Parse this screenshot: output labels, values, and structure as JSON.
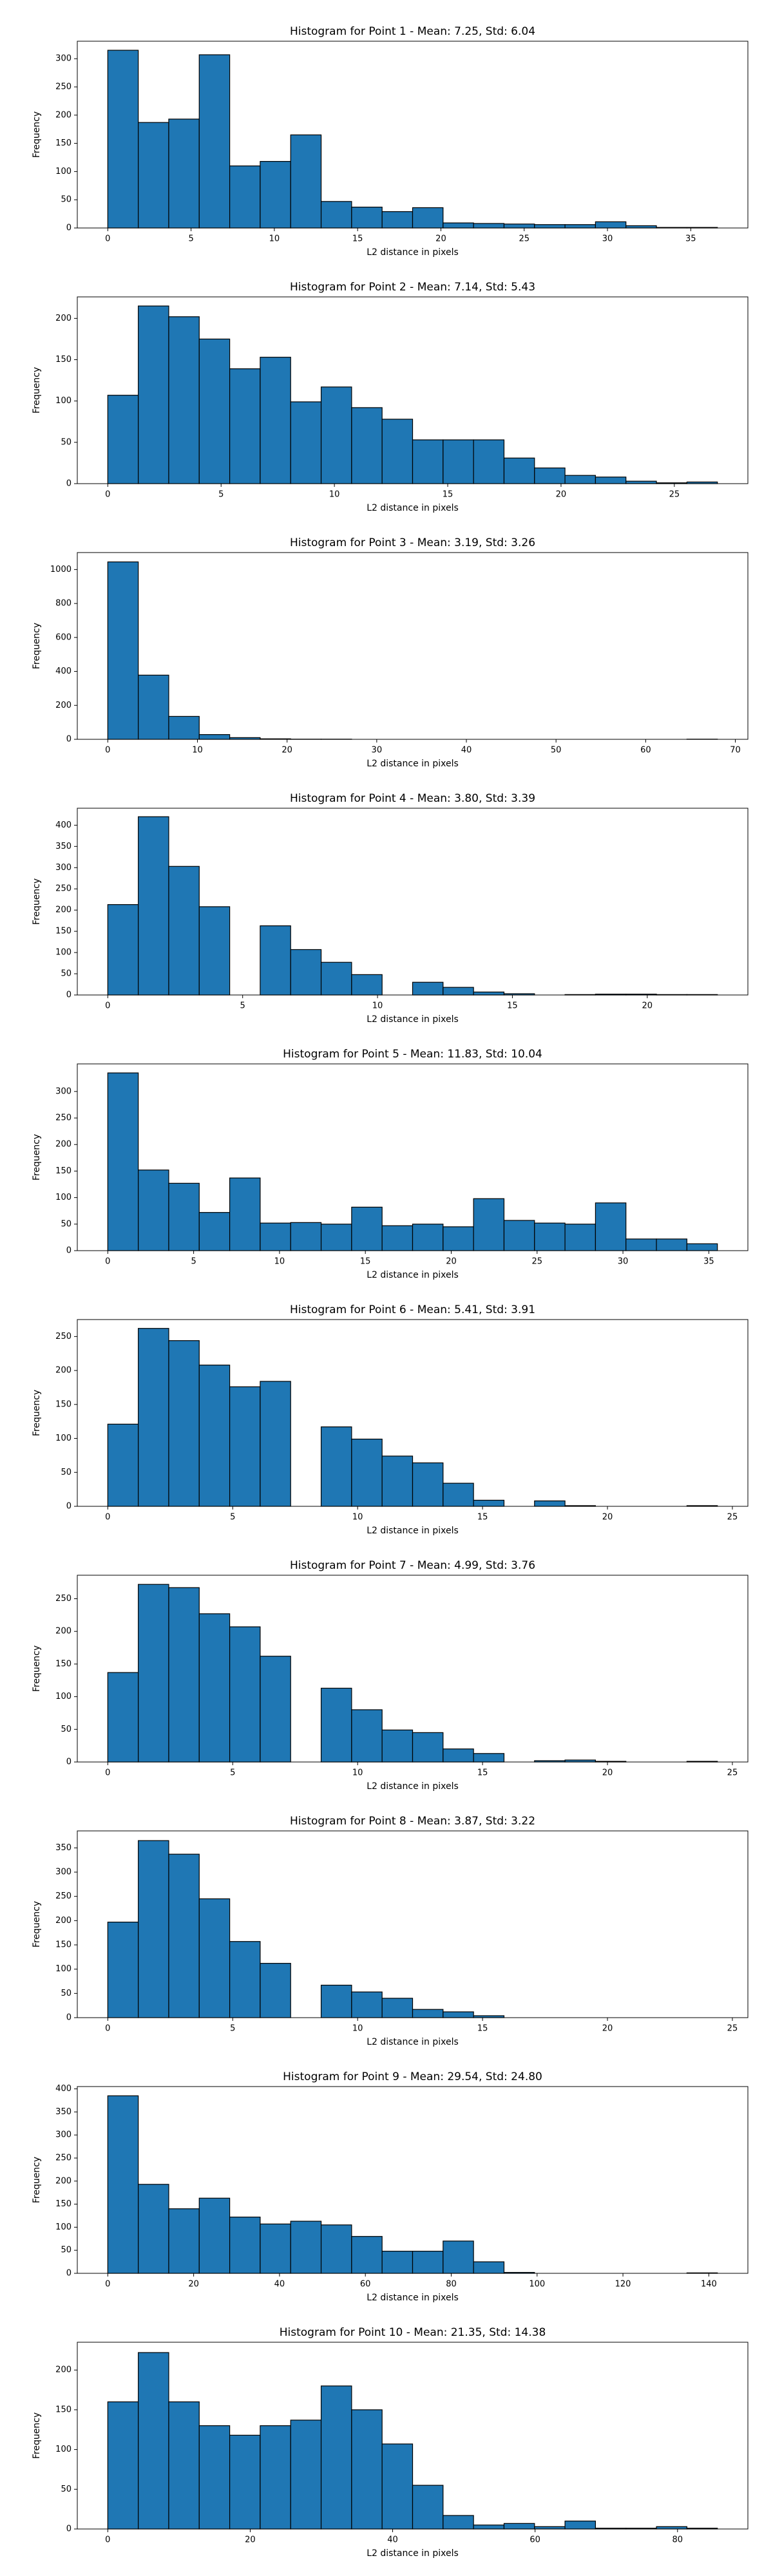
{
  "chart_data": [
    {
      "type": "histogram",
      "title": "Histogram for Point 1 - Mean: 7.25, Std: 6.04",
      "x_label": "L2 distance in pixels",
      "y_label": "Frequency",
      "color": "#1f77b4",
      "bins": [
        0,
        1.83,
        3.66,
        5.49,
        7.32,
        9.15,
        10.98,
        12.81,
        14.64,
        16.47,
        18.3,
        20.13,
        21.96,
        23.79,
        25.62,
        27.45,
        29.28,
        31.11,
        32.94,
        34.77,
        36.6
      ],
      "values": [
        315,
        187,
        193,
        307,
        110,
        118,
        165,
        47,
        37,
        29,
        36,
        9,
        8,
        7,
        6,
        6,
        11,
        4,
        1,
        1
      ],
      "xlim": [
        -1.83,
        38.43
      ],
      "xticks": [
        0,
        5,
        10,
        15,
        20,
        25,
        30,
        35
      ],
      "ylim": [
        0,
        331
      ],
      "yticks": [
        0,
        50,
        100,
        150,
        200,
        250,
        300
      ]
    },
    {
      "type": "histogram",
      "title": "Histogram for Point 2 - Mean: 7.14, Std: 5.43",
      "x_label": "L2 distance in pixels",
      "y_label": "Frequency",
      "color": "#1f77b4",
      "bins": [
        0,
        1.345,
        2.69,
        4.035,
        5.38,
        6.725,
        8.07,
        9.415,
        10.76,
        12.105,
        13.45,
        14.795,
        16.14,
        17.485,
        18.83,
        20.175,
        21.52,
        22.865,
        24.21,
        25.555,
        26.9
      ],
      "values": [
        107,
        215,
        202,
        175,
        139,
        153,
        99,
        117,
        92,
        78,
        53,
        53,
        53,
        31,
        19,
        10,
        8,
        3,
        1,
        2
      ],
      "xlim": [
        -1.345,
        28.245
      ],
      "xticks": [
        0,
        5,
        10,
        15,
        20,
        25
      ],
      "ylim": [
        0,
        226
      ],
      "yticks": [
        0,
        50,
        100,
        150,
        200
      ]
    },
    {
      "type": "histogram",
      "title": "Histogram for Point 3 - Mean: 3.19, Std: 3.26",
      "x_label": "L2 distance in pixels",
      "y_label": "Frequency",
      "color": "#1f77b4",
      "bins": [
        0,
        3.4,
        6.8,
        10.2,
        13.6,
        17,
        20.4,
        23.8,
        27.2,
        30.6,
        34,
        37.4,
        40.8,
        44.2,
        47.6,
        51,
        54.4,
        57.8,
        61.2,
        64.6,
        68
      ],
      "values": [
        1045,
        378,
        135,
        28,
        10,
        3,
        1,
        1,
        0,
        0,
        0,
        0,
        0,
        0,
        0,
        0,
        0,
        0,
        0,
        1
      ],
      "xlim": [
        -3.4,
        71.4
      ],
      "xticks": [
        0,
        10,
        20,
        30,
        40,
        50,
        60,
        70
      ],
      "ylim": [
        0,
        1100
      ],
      "yticks": [
        0,
        200,
        400,
        600,
        800,
        1000
      ]
    },
    {
      "type": "histogram",
      "title": "Histogram for Point 4 - Mean: 3.80, Std: 3.39",
      "x_label": "L2 distance in pixels",
      "y_label": "Frequency",
      "color": "#1f77b4",
      "bins": [
        0,
        1.13,
        2.26,
        3.39,
        4.52,
        5.65,
        6.78,
        7.91,
        9.04,
        10.17,
        11.3,
        12.43,
        13.56,
        14.69,
        15.82,
        16.95,
        18.08,
        19.21,
        20.34,
        21.47,
        22.6
      ],
      "values": [
        213,
        420,
        303,
        208,
        0,
        163,
        107,
        77,
        48,
        0,
        30,
        18,
        7,
        3,
        0,
        1,
        2,
        2,
        1,
        1
      ],
      "xlim": [
        -1.13,
        23.73
      ],
      "xticks": [
        0,
        5,
        10,
        15,
        20
      ],
      "ylim": [
        0,
        440
      ],
      "yticks": [
        0,
        50,
        100,
        150,
        200,
        250,
        300,
        350,
        400
      ]
    },
    {
      "type": "histogram",
      "title": "Histogram for Point 5 - Mean: 11.83, Std: 10.04",
      "x_label": "L2 distance in pixels",
      "y_label": "Frequency",
      "color": "#1f77b4",
      "bins": [
        0,
        1.775,
        3.55,
        5.325,
        7.1,
        8.875,
        10.65,
        12.425,
        14.2,
        15.975,
        17.75,
        19.525,
        21.3,
        23.075,
        24.85,
        26.625,
        28.4,
        30.175,
        31.95,
        33.725,
        35.5
      ],
      "values": [
        335,
        152,
        127,
        72,
        137,
        52,
        53,
        50,
        82,
        47,
        50,
        45,
        98,
        57,
        52,
        50,
        90,
        22,
        22,
        13
      ],
      "xlim": [
        -1.775,
        37.275
      ],
      "xticks": [
        0,
        5,
        10,
        15,
        20,
        25,
        30,
        35
      ],
      "ylim": [
        0,
        352
      ],
      "yticks": [
        0,
        50,
        100,
        150,
        200,
        250,
        300
      ]
    },
    {
      "type": "histogram",
      "title": "Histogram for Point 6 - Mean: 5.41, Std: 3.91",
      "x_label": "L2 distance in pixels",
      "y_label": "Frequency",
      "color": "#1f77b4",
      "bins": [
        0,
        1.22,
        2.44,
        3.66,
        4.88,
        6.1,
        7.32,
        8.54,
        9.76,
        10.98,
        12.2,
        13.42,
        14.64,
        15.86,
        17.08,
        18.3,
        19.52,
        20.74,
        21.96,
        23.18,
        24.4
      ],
      "values": [
        121,
        262,
        244,
        208,
        176,
        184,
        0,
        117,
        99,
        74,
        64,
        34,
        9,
        0,
        8,
        1,
        0,
        0,
        0,
        1
      ],
      "xlim": [
        -1.22,
        25.62
      ],
      "xticks": [
        0,
        5,
        10,
        15,
        20,
        25
      ],
      "ylim": [
        0,
        275
      ],
      "yticks": [
        0,
        50,
        100,
        150,
        200,
        250
      ]
    },
    {
      "type": "histogram",
      "title": "Histogram for Point 7 - Mean: 4.99, Std: 3.76",
      "x_label": "L2 distance in pixels",
      "y_label": "Frequency",
      "color": "#1f77b4",
      "bins": [
        0,
        1.22,
        2.44,
        3.66,
        4.88,
        6.1,
        7.32,
        8.54,
        9.76,
        10.98,
        12.2,
        13.42,
        14.64,
        15.86,
        17.08,
        18.3,
        19.52,
        20.74,
        21.96,
        23.18,
        24.4
      ],
      "values": [
        137,
        272,
        267,
        227,
        207,
        162,
        0,
        113,
        80,
        49,
        45,
        20,
        13,
        0,
        2,
        3,
        1,
        0,
        0,
        1
      ],
      "xlim": [
        -1.22,
        25.62
      ],
      "xticks": [
        0,
        5,
        10,
        15,
        20,
        25
      ],
      "ylim": [
        0,
        286
      ],
      "yticks": [
        0,
        50,
        100,
        150,
        200,
        250
      ]
    },
    {
      "type": "histogram",
      "title": "Histogram for Point 8 - Mean: 3.87, Std: 3.22",
      "x_label": "L2 distance in pixels",
      "y_label": "Frequency",
      "color": "#1f77b4",
      "bins": [
        0,
        1.22,
        2.44,
        3.66,
        4.88,
        6.1,
        7.32,
        8.54,
        9.76,
        10.98,
        12.2,
        13.42,
        14.64,
        15.86,
        17.08,
        18.3,
        19.52,
        20.74,
        21.96,
        23.18,
        24.4
      ],
      "values": [
        197,
        365,
        337,
        245,
        157,
        112,
        0,
        67,
        53,
        40,
        17,
        12,
        4,
        0,
        0,
        0,
        0,
        0,
        0,
        0
      ],
      "xlim": [
        -1.22,
        25.62
      ],
      "xticks": [
        0,
        5,
        10,
        15,
        20,
        25
      ],
      "ylim": [
        0,
        385
      ],
      "yticks": [
        0,
        50,
        100,
        150,
        200,
        250,
        300,
        350
      ]
    },
    {
      "type": "histogram",
      "title": "Histogram for Point 9 - Mean: 29.54, Std: 24.80",
      "x_label": "L2 distance in pixels",
      "y_label": "Frequency",
      "color": "#1f77b4",
      "bins": [
        0,
        7.1,
        14.2,
        21.3,
        28.4,
        35.5,
        42.6,
        49.7,
        56.8,
        63.9,
        71,
        78.1,
        85.2,
        92.3,
        99.4,
        106.5,
        113.6,
        120.7,
        127.8,
        134.9,
        142
      ],
      "values": [
        385,
        193,
        140,
        163,
        122,
        107,
        113,
        105,
        80,
        48,
        48,
        70,
        25,
        2,
        0,
        0,
        0,
        0,
        0,
        1
      ],
      "xlim": [
        -7.1,
        149.1
      ],
      "xticks": [
        0,
        20,
        40,
        60,
        80,
        100,
        120,
        140
      ],
      "ylim": [
        0,
        405
      ],
      "yticks": [
        0,
        50,
        100,
        150,
        200,
        250,
        300,
        350,
        400
      ]
    },
    {
      "type": "histogram",
      "title": "Histogram for Point 10 - Mean: 21.35, Std: 14.38",
      "x_label": "L2 distance in pixels",
      "y_label": "Frequency",
      "color": "#1f77b4",
      "bins": [
        0,
        4.28,
        8.56,
        12.84,
        17.12,
        21.4,
        25.68,
        29.96,
        34.24,
        38.52,
        42.8,
        47.08,
        51.36,
        55.64,
        59.92,
        64.2,
        68.48,
        72.76,
        77.04,
        81.32,
        85.6
      ],
      "values": [
        160,
        222,
        160,
        130,
        118,
        130,
        137,
        180,
        150,
        107,
        55,
        17,
        5,
        7,
        3,
        10,
        1,
        1,
        3,
        1
      ],
      "xlim": [
        -4.28,
        89.88
      ],
      "xticks": [
        0,
        20,
        40,
        60,
        80
      ],
      "ylim": [
        0,
        235
      ],
      "yticks": [
        0,
        50,
        100,
        150,
        200
      ]
    }
  ]
}
